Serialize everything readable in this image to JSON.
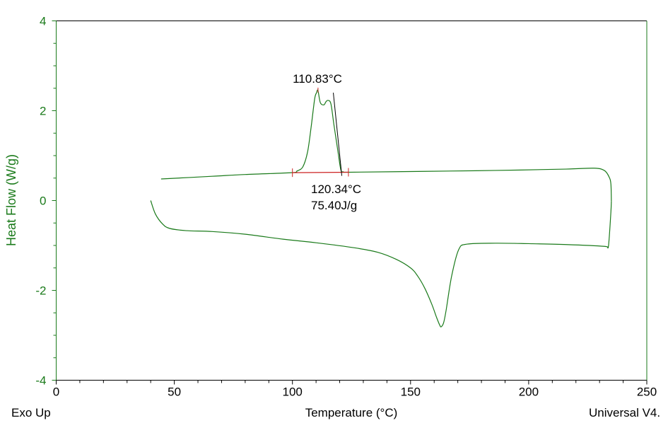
{
  "chart_data": {
    "type": "line",
    "title": "",
    "xlabel": "Temperature (°C)",
    "ylabel": "Heat Flow (W/g)",
    "xlim": [
      0,
      250
    ],
    "ylim": [
      -4,
      4
    ],
    "x_ticks": [
      "0",
      "50",
      "100",
      "150",
      "200",
      "250"
    ],
    "y_ticks": [
      "4",
      "2",
      "0",
      "-2",
      "-4"
    ],
    "footer_left": "Exo Up",
    "footer_right": "Universal V4.",
    "colors": {
      "curve": "#1a7a1a",
      "axis": "#1a7a1a",
      "baseline": "#cc2222",
      "tangent": "#000000"
    },
    "series": [
      {
        "name": "heating",
        "x": [
          40,
          42,
          45,
          48,
          55,
          66,
          80,
          96,
          110,
          126,
          136,
          144,
          150,
          153,
          156,
          159,
          161,
          162.4,
          163,
          164,
          165,
          167.4,
          170.4,
          174,
          186,
          200,
          216,
          232,
          233.5,
          234,
          234.8,
          235
        ],
        "y": [
          0,
          -0.3,
          -0.52,
          -0.62,
          -0.67,
          -0.69,
          -0.75,
          -0.86,
          -0.94,
          -1.05,
          -1.15,
          -1.31,
          -1.5,
          -1.68,
          -1.95,
          -2.31,
          -2.6,
          -2.78,
          -2.81,
          -2.72,
          -2.46,
          -1.68,
          -1.09,
          -0.97,
          -0.95,
          -0.96,
          -0.98,
          -1.02,
          -1.05,
          -0.89,
          -0.26,
          -0.02
        ]
      },
      {
        "name": "cooling",
        "x": [
          235,
          234.8,
          234,
          232,
          227.7,
          215.7,
          186,
          156,
          123.7,
          121.5,
          120.5,
          119.3,
          117.5,
          116.3,
          115.1,
          114.2,
          113.3,
          111.8,
          110.8,
          110.2,
          109.4,
          107.9,
          106.4,
          104.4,
          102,
          99.5,
          80,
          66,
          44.4
        ],
        "y": [
          -0.02,
          0.37,
          0.53,
          0.67,
          0.72,
          0.7,
          0.67,
          0.65,
          0.63,
          0.64,
          0.68,
          1.08,
          1.71,
          2.15,
          2.23,
          2.2,
          2.13,
          2.18,
          2.45,
          2.4,
          2.26,
          1.63,
          1.08,
          0.75,
          0.66,
          0.62,
          0.58,
          0.54,
          0.48
        ]
      }
    ],
    "annotations": {
      "peak_label": "110.83°C",
      "peak_x": 110.83,
      "peak_y": 2.45,
      "onset_label": "120.34°C",
      "enthalpy_label": "75.40J/g",
      "baseline_x": [
        100,
        123.7
      ],
      "baseline_y": [
        0.62,
        0.63
      ],
      "tangent_x": [
        117.3,
        120.9
      ],
      "tangent_y": [
        2.4,
        0.55
      ]
    }
  }
}
